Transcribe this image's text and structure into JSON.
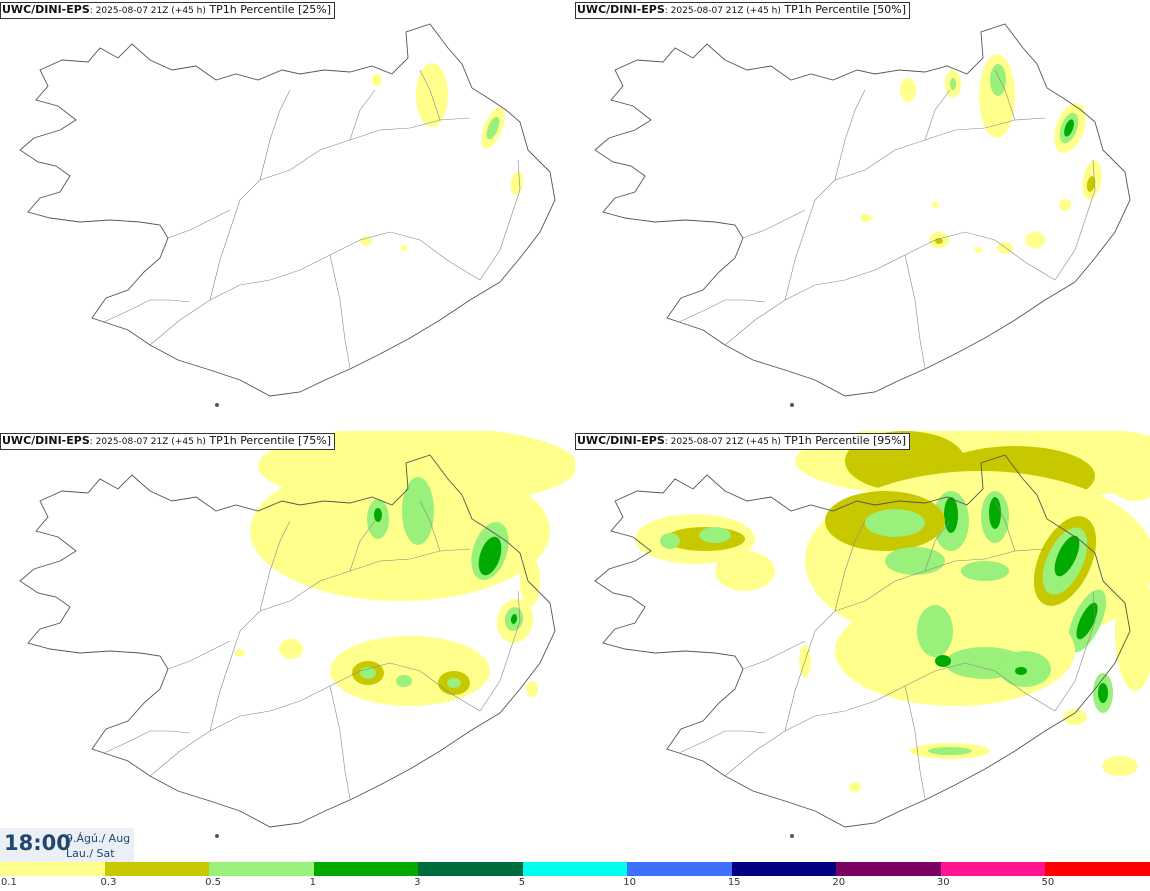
{
  "panels": [
    {
      "model": "UWC/DINI-EPS",
      "run": ": 2025-08-07 21Z (+45 h)",
      "field": " TP1h Percentile [25%]"
    },
    {
      "model": "UWC/DINI-EPS",
      "run": ": 2025-08-07 21Z (+45 h)",
      "field": " TP1h Percentile [50%]"
    },
    {
      "model": "UWC/DINI-EPS",
      "run": ": 2025-08-07 21Z (+45 h)",
      "field": " TP1h Percentile [75%]"
    },
    {
      "model": "UWC/DINI-EPS",
      "run": ": 2025-08-07 21Z (+45 h)",
      "field": " TP1h Percentile [95%]"
    }
  ],
  "valid_time": {
    "time": "18:00",
    "date_line1": "9.Ágú./ Aug",
    "date_line2": "Lau./ Sat"
  },
  "colorbar": {
    "colors": [
      "#ffff8c",
      "#c8c800",
      "#99f07a",
      "#00aa00",
      "#006b3c",
      "#00ffee",
      "#3f6fff",
      "#000080",
      "#7a0064",
      "#ff1493",
      "#ff0000"
    ],
    "labels": [
      "0.1",
      "0.3",
      "0.5",
      "1",
      "3",
      "5",
      "10",
      "15",
      "20",
      "30",
      "50"
    ]
  }
}
